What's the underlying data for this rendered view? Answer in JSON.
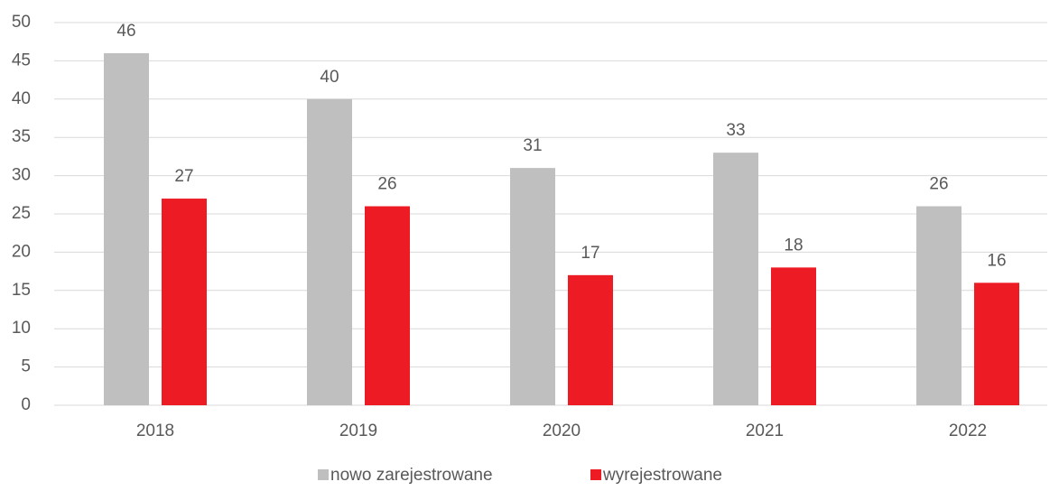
{
  "chart_data": {
    "type": "bar",
    "categories": [
      "2018",
      "2019",
      "2020",
      "2021",
      "2022"
    ],
    "series": [
      {
        "name": "nowo zarejestrowane",
        "color": "#bfbfbf",
        "values": [
          46,
          40,
          31,
          33,
          26
        ]
      },
      {
        "name": "wyrejestrowane",
        "color": "#ed1c24",
        "values": [
          27,
          26,
          17,
          18,
          16
        ]
      }
    ],
    "ylim": [
      0,
      50
    ],
    "yticks": [
      0,
      5,
      10,
      15,
      20,
      25,
      30,
      35,
      40,
      45,
      50
    ],
    "grid": true,
    "legend": "bottom"
  }
}
